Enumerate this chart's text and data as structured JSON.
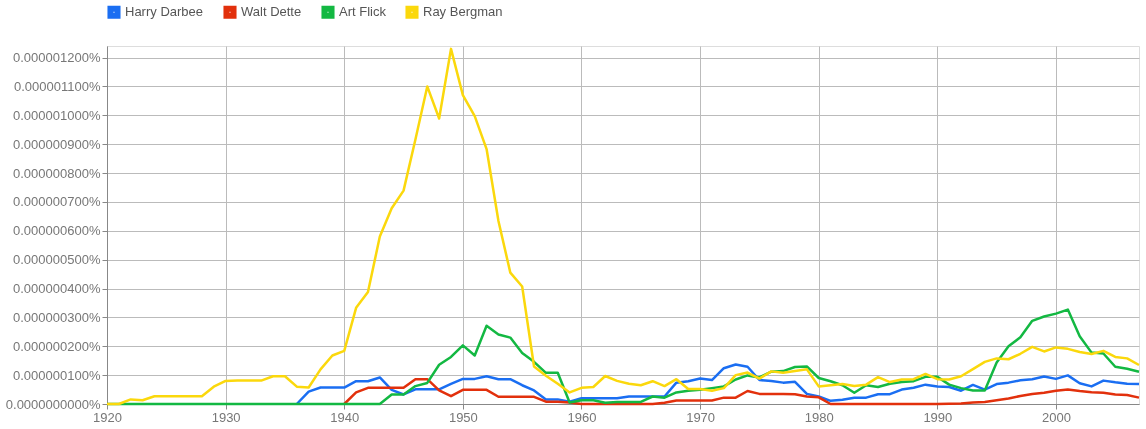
{
  "chart_data": {
    "type": "line",
    "x": [
      1920,
      1921,
      1922,
      1923,
      1924,
      1925,
      1926,
      1927,
      1928,
      1929,
      1930,
      1931,
      1932,
      1933,
      1934,
      1935,
      1936,
      1937,
      1938,
      1939,
      1940,
      1941,
      1942,
      1943,
      1944,
      1945,
      1946,
      1947,
      1948,
      1949,
      1950,
      1951,
      1952,
      1953,
      1954,
      1955,
      1956,
      1957,
      1958,
      1959,
      1960,
      1961,
      1962,
      1963,
      1964,
      1965,
      1966,
      1967,
      1968,
      1969,
      1970,
      1971,
      1972,
      1973,
      1974,
      1975,
      1976,
      1977,
      1978,
      1979,
      1980,
      1981,
      1982,
      1983,
      1984,
      1985,
      1986,
      1987,
      1988,
      1989,
      1990,
      1991,
      1992,
      1993,
      1994,
      1995,
      1996,
      1997,
      1998,
      1999,
      2000,
      2001,
      2002,
      2003,
      2004,
      2005,
      2006,
      2007
    ],
    "series": [
      {
        "name": "Harry Darbee",
        "color": "#1a6ef2",
        "values": [
          null,
          null,
          null,
          null,
          null,
          null,
          null,
          null,
          null,
          null,
          null,
          null,
          null,
          null,
          null,
          null,
          0,
          4.3e-08,
          5.7e-08,
          5.7e-08,
          5.7e-08,
          7.9e-08,
          7.9e-08,
          9.2e-08,
          4.9e-08,
          3.3e-08,
          5.1e-08,
          5.1e-08,
          5.1e-08,
          7e-08,
          8.7e-08,
          8.7e-08,
          9.6e-08,
          8.6e-08,
          8.6e-08,
          6.5e-08,
          4.7e-08,
          1.6e-08,
          1.6e-08,
          8e-09,
          2e-08,
          2e-08,
          2e-08,
          2e-08,
          2.6e-08,
          2.6e-08,
          2.6e-08,
          2.6e-08,
          7.4e-08,
          7.9e-08,
          8.8e-08,
          8.3e-08,
          1.24e-07,
          1.37e-07,
          1.29e-07,
          8.3e-08,
          8e-08,
          7.4e-08,
          7.7e-08,
          3.5e-08,
          2.6e-08,
          1.1e-08,
          1.5e-08,
          2.2e-08,
          2.2e-08,
          3.4e-08,
          3.4e-08,
          5e-08,
          5.6e-08,
          6.7e-08,
          6.1e-08,
          5.9e-08,
          4.6e-08,
          6.6e-08,
          5e-08,
          6.9e-08,
          7.4e-08,
          8.2e-08,
          8.6e-08,
          9.5e-08,
          8.7e-08,
          9.9e-08,
          7.2e-08,
          6.1e-08,
          8.1e-08,
          7.5e-08,
          7e-08,
          6.9e-08
        ]
      },
      {
        "name": "Walt Dette",
        "color": "#e2300c",
        "values": [
          null,
          null,
          null,
          null,
          null,
          null,
          null,
          null,
          null,
          null,
          null,
          null,
          null,
          null,
          null,
          null,
          null,
          null,
          null,
          null,
          0,
          4e-08,
          5.6e-08,
          5.6e-08,
          5.6e-08,
          5.6e-08,
          8.6e-08,
          8.6e-08,
          4.7e-08,
          2.7e-08,
          4.9e-08,
          4.9e-08,
          4.9e-08,
          2.5e-08,
          2.5e-08,
          2.5e-08,
          2.5e-08,
          8e-09,
          8e-09,
          5e-09,
          0,
          0,
          0,
          0,
          0,
          0,
          0,
          4e-09,
          1.2e-08,
          1.2e-08,
          1.2e-08,
          1.2e-08,
          2.2e-08,
          2.2e-08,
          4.5e-08,
          3.5e-08,
          3.5e-08,
          3.5e-08,
          3.4e-08,
          2.6e-08,
          2.3e-08,
          0,
          0,
          0,
          0,
          0,
          0,
          0,
          0,
          0,
          0,
          1e-09,
          2e-09,
          5e-09,
          7e-09,
          1.3e-08,
          1.9e-08,
          2.8e-08,
          3.5e-08,
          3.9e-08,
          4.6e-08,
          5e-08,
          4.5e-08,
          4.1e-08,
          3.9e-08,
          3.3e-08,
          3.1e-08,
          2.2e-08
        ]
      },
      {
        "name": "Art Flick",
        "color": "#13b842",
        "values": [
          0,
          0,
          0,
          0,
          0,
          0,
          0,
          0,
          0,
          0,
          0,
          0,
          0,
          0,
          0,
          0,
          0,
          0,
          0,
          0,
          0,
          0,
          0,
          0,
          3.3e-08,
          3.3e-08,
          6.2e-08,
          7.3e-08,
          1.36e-07,
          1.63e-07,
          2.03e-07,
          1.68e-07,
          2.71e-07,
          2.41e-07,
          2.3e-07,
          1.77e-07,
          1.46e-07,
          1.08e-07,
          1.08e-07,
          5e-09,
          1.3e-08,
          1.3e-08,
          4e-09,
          7e-09,
          7e-09,
          7e-09,
          2.6e-08,
          2.2e-08,
          4e-08,
          4.6e-08,
          4.9e-08,
          5.5e-08,
          6.1e-08,
          8.5e-08,
          9.9e-08,
          9.2e-08,
          1.12e-07,
          1.14e-07,
          1.28e-07,
          1.3e-07,
          9e-08,
          7.9e-08,
          6.5e-08,
          3.9e-08,
          6.5e-08,
          5.9e-08,
          7e-08,
          7.6e-08,
          7.9e-08,
          9.4e-08,
          9.4e-08,
          6.7e-08,
          5.5e-08,
          4.7e-08,
          4.7e-08,
          1.44e-07,
          2e-07,
          2.31e-07,
          2.88e-07,
          3.03e-07,
          3.13e-07,
          3.27e-07,
          2.35e-07,
          1.78e-07,
          1.75e-07,
          1.29e-07,
          1.22e-07,
          1.12e-07
        ]
      },
      {
        "name": "Ray Bergman",
        "color": "#fbd80c",
        "values": [
          0,
          0,
          1.6e-08,
          1.3e-08,
          2.7e-08,
          2.7e-08,
          2.7e-08,
          2.7e-08,
          2.7e-08,
          6e-08,
          8e-08,
          8.1e-08,
          8.1e-08,
          8.1e-08,
          9.6e-08,
          9.6e-08,
          6e-08,
          5.7e-08,
          1.2e-07,
          1.68e-07,
          1.84e-07,
          3.33e-07,
          3.88e-07,
          5.8e-07,
          6.78e-07,
          7.39e-07,
          9.16e-07,
          1.1e-06,
          9.89e-07,
          1.23e-06,
          1.07e-06,
          9.97e-07,
          8.83e-07,
          6.34e-07,
          4.55e-07,
          4.07e-07,
          1.3e-07,
          9.8e-08,
          7e-08,
          4e-08,
          5.6e-08,
          5.9e-08,
          9.7e-08,
          8e-08,
          7e-08,
          6.5e-08,
          7.9e-08,
          6.2e-08,
          8.6e-08,
          5.2e-08,
          5.2e-08,
          4.6e-08,
          5.5e-08,
          1e-07,
          1.09e-07,
          8.8e-08,
          1.13e-07,
          1.08e-07,
          1.14e-07,
          1.2e-07,
          6.1e-08,
          6.5e-08,
          6.9e-08,
          6.2e-08,
          6.7e-08,
          9.3e-08,
          7.6e-08,
          8.5e-08,
          8.6e-08,
          1.04e-07,
          8.6e-08,
          8.5e-08,
          9.6e-08,
          1.21e-07,
          1.46e-07,
          1.58e-07,
          1.55e-07,
          1.74e-07,
          1.98e-07,
          1.82e-07,
          1.96e-07,
          1.91e-07,
          1.8e-07,
          1.73e-07,
          1.84e-07,
          1.63e-07,
          1.58e-07,
          1.35e-07
        ]
      }
    ],
    "xlim": [
      1920,
      2007
    ],
    "xticks": [
      1920,
      1930,
      1940,
      1950,
      1960,
      1970,
      1980,
      1990,
      2000
    ],
    "ylim": [
      0,
      1.24e-06
    ],
    "yticks": [
      {
        "value": 0,
        "label": "0.0000000000%"
      },
      {
        "value": 1e-07,
        "label": "0.000000100%"
      },
      {
        "value": 2e-07,
        "label": "0.000000200%"
      },
      {
        "value": 3e-07,
        "label": "0.000000300%"
      },
      {
        "value": 4e-07,
        "label": "0.000000400%"
      },
      {
        "value": 5e-07,
        "label": "0.000000500%"
      },
      {
        "value": 6e-07,
        "label": "0.000000600%"
      },
      {
        "value": 7e-07,
        "label": "0.000000700%"
      },
      {
        "value": 8e-07,
        "label": "0.000000800%"
      },
      {
        "value": 9e-07,
        "label": "0.000000900%"
      },
      {
        "value": 1e-06,
        "label": "0.000001000%"
      },
      {
        "value": 1.1e-06,
        "label": "0.000001100%"
      },
      {
        "value": 1.2e-06,
        "label": "0.000001200%"
      }
    ],
    "grid": true,
    "legend": "top",
    "marker": "none",
    "line_style": "solid"
  }
}
